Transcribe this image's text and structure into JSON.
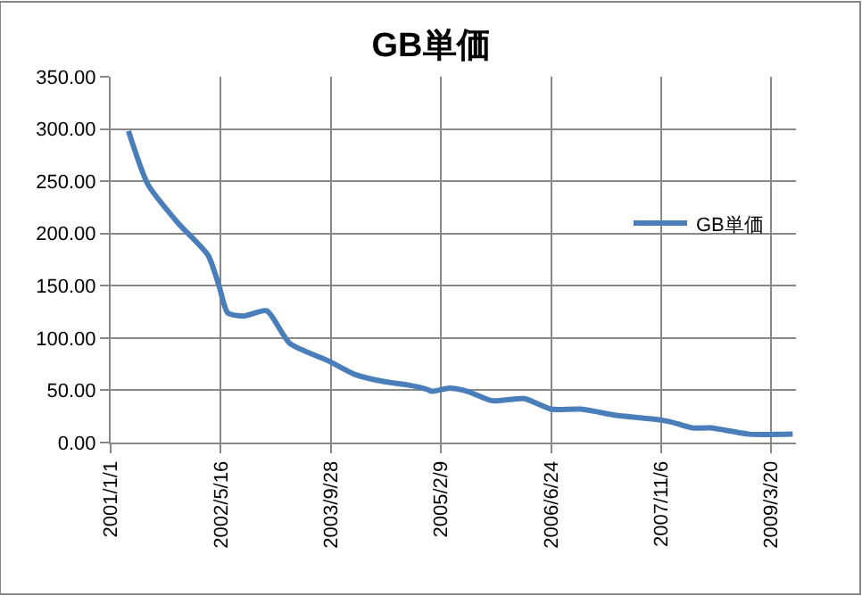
{
  "chart_data": {
    "type": "line",
    "title": "GB単価",
    "x": [
      "2001-03-23",
      "2001-06-19",
      "2001-11-03",
      "2002-03-20",
      "2002-05-08",
      "2002-06-17",
      "2002-08-28",
      "2002-12-11",
      "2003-03-25",
      "2003-09-18",
      "2004-01-17",
      "2004-06-03",
      "2004-09-16",
      "2004-12-06",
      "2004-12-30",
      "2005-03-21",
      "2005-06-09",
      "2005-09-30",
      "2006-02-22",
      "2006-06-23",
      "2006-11-07",
      "2007-04-17",
      "2007-10-20",
      "2007-12-15",
      "2008-03-29",
      "2008-06-17",
      "2008-12-12",
      "2009-06-25"
    ],
    "series": [
      {
        "name": "GB単価",
        "color": "#4a7ebb",
        "values": [
          298,
          247,
          210,
          179,
          150,
          124,
          121,
          126,
          95,
          78,
          65,
          58,
          55,
          51,
          49,
          52,
          49,
          40,
          42,
          32,
          32,
          26,
          22,
          20,
          14,
          14,
          8,
          8
        ]
      }
    ],
    "xlim": [
      "2001-01-01",
      "2009-07-10"
    ],
    "xticks": [
      {
        "value": "2001-01-01",
        "label": "2001/1/1"
      },
      {
        "value": "2002-05-16",
        "label": "2002/5/16"
      },
      {
        "value": "2003-09-28",
        "label": "2003/9/28"
      },
      {
        "value": "2005-02-09",
        "label": "2005/2/9"
      },
      {
        "value": "2006-06-24",
        "label": "2006/6/24"
      },
      {
        "value": "2007-11-06",
        "label": "2007/11/6"
      },
      {
        "value": "2009-03-20",
        "label": "2009/3/20"
      }
    ],
    "ylim": [
      0,
      350
    ],
    "yticks": [
      {
        "value": 0,
        "label": "0.00"
      },
      {
        "value": 50,
        "label": "50.00"
      },
      {
        "value": 100,
        "label": "100.00"
      },
      {
        "value": 150,
        "label": "150.00"
      },
      {
        "value": 200,
        "label": "200.00"
      },
      {
        "value": 250,
        "label": "250.00"
      },
      {
        "value": 300,
        "label": "300.00"
      },
      {
        "value": 350,
        "label": "350.00"
      }
    ],
    "grid": true,
    "legend": "right",
    "marker": "none",
    "line_style": "solid"
  }
}
